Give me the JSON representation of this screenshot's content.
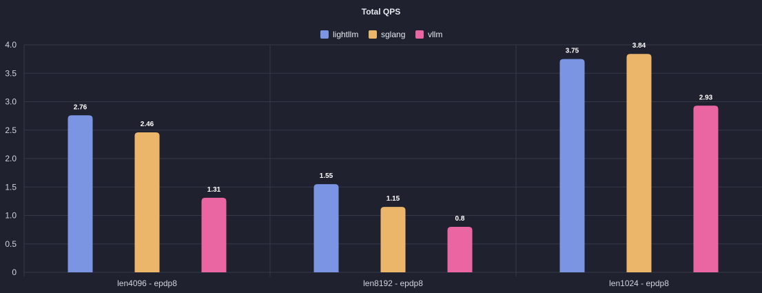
{
  "chart_data": {
    "type": "bar",
    "title": "Total QPS",
    "xlabel": "",
    "ylabel": "",
    "categories": [
      "len4096 - epdp8",
      "len8192 - epdp8",
      "len1024 - epdp8"
    ],
    "series": [
      {
        "name": "lightllm",
        "color": "#7b95e3",
        "values": [
          2.76,
          1.55,
          3.75
        ]
      },
      {
        "name": "sglang",
        "color": "#ebb56a",
        "values": [
          2.46,
          1.15,
          3.84
        ]
      },
      {
        "name": "vllm",
        "color": "#ea66a3",
        "values": [
          1.31,
          0.8,
          2.93
        ]
      }
    ],
    "ylim": [
      0,
      4
    ],
    "y_ticks": [
      "0",
      "0.5",
      "1.0",
      "1.5",
      "2.0",
      "2.5",
      "3.0",
      "3.5",
      "4.0"
    ],
    "y_tick_values": [
      0,
      0.5,
      1.0,
      1.5,
      2.0,
      2.5,
      3.0,
      3.5,
      4.0
    ],
    "value_labels": [
      [
        "2.76",
        "1.55",
        "3.75"
      ],
      [
        "2.46",
        "1.15",
        "3.84"
      ],
      [
        "1.31",
        "0.8",
        "2.93"
      ]
    ],
    "grid": true,
    "legend_position": "top-center"
  },
  "colors": {
    "background": "#1f222e",
    "grid": "#343847",
    "text": "#e6e8ef"
  }
}
